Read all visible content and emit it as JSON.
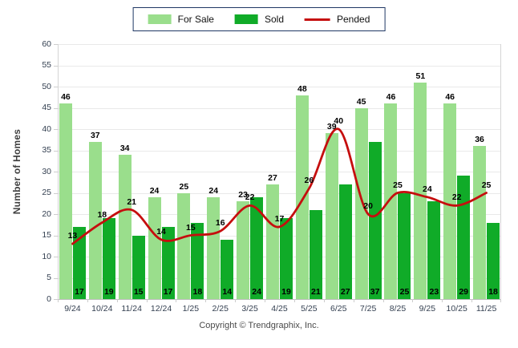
{
  "legend": {
    "for_sale": "For Sale",
    "sold": "Sold",
    "pended": "Pended"
  },
  "ylabel": "Number of Homes",
  "footer": "Copyright © Trendgraphix, Inc.",
  "colors": {
    "for_sale": "#9ADE8C",
    "sold": "#10AB28",
    "pended": "#C50E0E",
    "legend_border": "#1F3864",
    "grid": "#E9E9E9",
    "axis": "#CDCDCD",
    "tick_text": "#333F50",
    "data_label": "#000000"
  },
  "chart_data": {
    "type": "bar",
    "title": "",
    "xlabel": "",
    "ylabel": "Number of Homes",
    "ylim": [
      0,
      60
    ],
    "ytick_step": 5,
    "grid": true,
    "legend_position": "top",
    "categories": [
      "9/24",
      "10/24",
      "11/24",
      "12/24",
      "1/25",
      "2/25",
      "3/25",
      "4/25",
      "5/25",
      "6/25",
      "7/25",
      "8/25",
      "9/25",
      "10/25",
      "11/25"
    ],
    "series": [
      {
        "name": "For Sale",
        "type": "bar",
        "color": "#9ADE8C",
        "values": [
          46,
          37,
          34,
          24,
          25,
          24,
          23,
          27,
          48,
          39,
          45,
          46,
          51,
          46,
          36
        ]
      },
      {
        "name": "Sold",
        "type": "bar",
        "color": "#10AB28",
        "values": [
          17,
          19,
          15,
          17,
          18,
          14,
          24,
          19,
          21,
          27,
          37,
          25,
          23,
          29,
          18
        ]
      },
      {
        "name": "Pended",
        "type": "line",
        "color": "#C50E0E",
        "values": [
          13,
          18,
          21,
          14,
          15,
          16,
          22,
          17,
          26,
          40,
          20,
          25,
          24,
          22,
          25
        ]
      }
    ]
  }
}
